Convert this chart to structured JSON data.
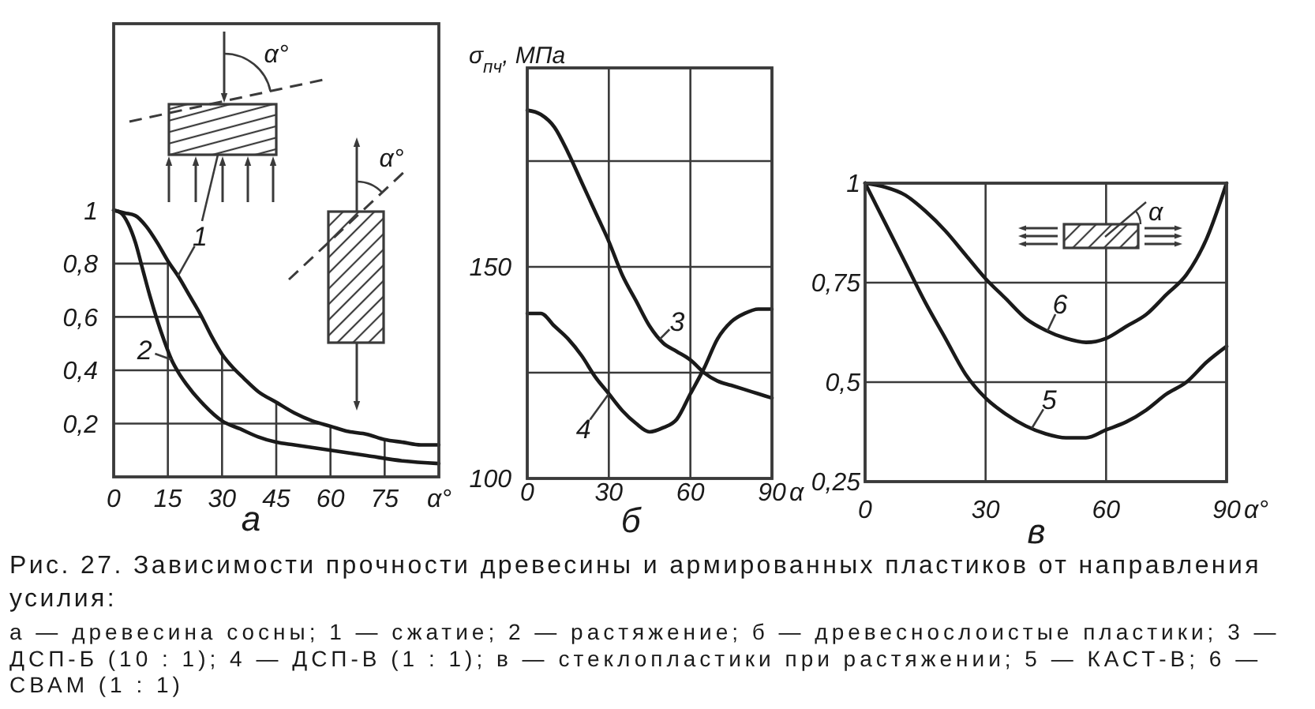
{
  "chart_data": [
    {
      "type": "line",
      "title": "а",
      "xlabel": "α°",
      "xlim": [
        0,
        90
      ],
      "xticks": [
        0,
        15,
        30,
        45,
        60,
        75
      ],
      "ylim": [
        0,
        1.7
      ],
      "yticks": [
        {
          "value": 0.2,
          "label": "0,2"
        },
        {
          "value": 0.4,
          "label": "0,4"
        },
        {
          "value": 0.6,
          "label": "0,6"
        },
        {
          "value": 0.8,
          "label": "0,8"
        },
        1
      ],
      "grid": true,
      "annotations": [
        "α°",
        "α°"
      ],
      "series": [
        {
          "name": "1",
          "color": "#1a1a1a",
          "x": [
            0,
            3,
            6,
            9,
            12,
            15,
            18,
            21,
            24,
            27,
            30,
            33,
            36,
            40,
            45,
            50,
            55,
            60,
            65,
            70,
            75,
            80,
            85,
            90
          ],
          "values": [
            1,
            0.99,
            0.98,
            0.94,
            0.88,
            0.81,
            0.75,
            0.68,
            0.61,
            0.53,
            0.46,
            0.41,
            0.37,
            0.32,
            0.28,
            0.24,
            0.21,
            0.19,
            0.17,
            0.16,
            0.14,
            0.13,
            0.12,
            0.12
          ]
        },
        {
          "name": "2",
          "color": "#1a1a1a",
          "x": [
            0,
            2,
            4,
            6,
            8,
            10,
            12,
            14,
            16,
            18,
            20,
            25,
            30,
            35,
            40,
            45,
            50,
            60,
            70,
            80,
            90
          ],
          "values": [
            1,
            0.99,
            0.95,
            0.88,
            0.78,
            0.68,
            0.59,
            0.51,
            0.44,
            0.39,
            0.35,
            0.27,
            0.21,
            0.18,
            0.15,
            0.13,
            0.12,
            0.1,
            0.08,
            0.06,
            0.05
          ]
        }
      ]
    },
    {
      "type": "line",
      "title": "б",
      "xlabel": "α",
      "ylabel": "σ$_{пч}$, МПа",
      "xlim": [
        0,
        90
      ],
      "xticks": [
        0,
        30,
        60,
        90
      ],
      "ylim": [
        100,
        197
      ],
      "yticks": [
        100,
        {
          "value": 125,
          "label": null
        },
        150,
        {
          "value": 175,
          "label": null
        }
      ],
      "grid": true,
      "x": [
        0,
        5,
        10,
        15,
        20,
        25,
        30,
        35,
        40,
        45,
        50,
        55,
        60,
        65,
        70,
        75,
        80,
        85,
        90
      ],
      "series": [
        {
          "name": "3",
          "color": "#1a1a1a",
          "values": [
            187,
            186,
            183,
            177,
            170,
            163,
            156,
            148,
            142,
            136,
            132,
            130,
            128,
            125,
            123,
            122,
            121,
            120,
            119
          ]
        },
        {
          "name": "4",
          "color": "#1a1a1a",
          "values": [
            139,
            139,
            136,
            133,
            129,
            124,
            120,
            116,
            113,
            111,
            112,
            114,
            120,
            126,
            133,
            137,
            139,
            140,
            140
          ]
        }
      ]
    },
    {
      "type": "line",
      "title": "в",
      "xlabel": "α°",
      "xlim": [
        0,
        90
      ],
      "xticks": [
        0,
        30,
        60,
        90
      ],
      "ylim": [
        0.25,
        1
      ],
      "yticks": [
        {
          "value": 0.25,
          "label": "0,25"
        },
        {
          "value": 0.5,
          "label": "0,5"
        },
        {
          "value": 0.75,
          "label": "0,75"
        },
        1
      ],
      "grid": true,
      "annotations": [
        "α"
      ],
      "x": [
        0,
        5,
        10,
        15,
        20,
        25,
        30,
        35,
        40,
        45,
        50,
        55,
        60,
        65,
        70,
        75,
        80,
        85,
        90
      ],
      "series": [
        {
          "name": "5",
          "color": "#1a1a1a",
          "values": [
            1,
            0.9,
            0.8,
            0.7,
            0.61,
            0.52,
            0.46,
            0.42,
            0.39,
            0.37,
            0.36,
            0.36,
            0.38,
            0.4,
            0.43,
            0.47,
            0.5,
            0.55,
            0.59
          ]
        },
        {
          "name": "6",
          "color": "#1a1a1a",
          "values": [
            1,
            0.99,
            0.97,
            0.93,
            0.88,
            0.82,
            0.76,
            0.71,
            0.66,
            0.63,
            0.61,
            0.6,
            0.61,
            0.64,
            0.67,
            0.72,
            0.77,
            0.86,
            1
          ]
        }
      ]
    },
    {
      "type": "other",
      "title": "Рис. 27. Зависимости прочности древесины и армированных пластиков от направления усилия:",
      "subtitle": "а — древесина сосны; 1 — сжатие; 2 — растяжение; б — древеснослоистые пластики; 3 — ДСП-Б (10 : 1); 4 — ДСП-В (1 : 1); в — стеклопластики при растяжении; 5 — КАСТ-В; 6 — СВАМ (1 : 1)"
    }
  ]
}
